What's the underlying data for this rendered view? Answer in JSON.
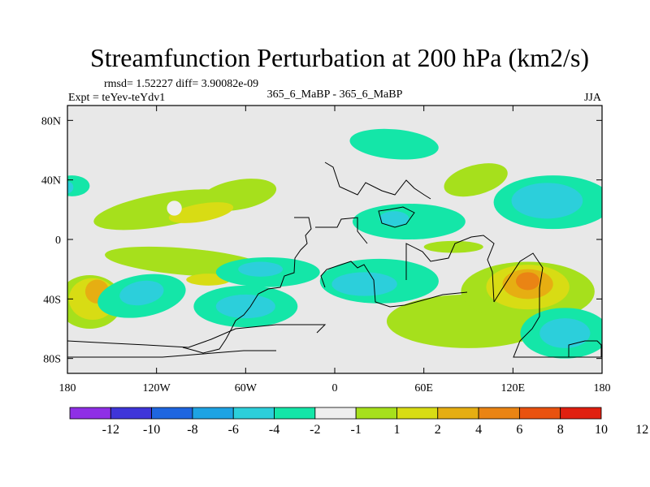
{
  "chart_data": {
    "type": "heatmap",
    "title": "Streamfunction Perturbation at 200 hPa (km2/s)",
    "stats_label": "rmsd= 1.52227 diff= 3.90082e-09",
    "experiment_label": "Expt = teYev-teYdv1",
    "comparison_label": "365_6_MaBP - 365_6_MaBP",
    "season_label": "JJA",
    "x_range": [
      -180,
      180
    ],
    "y_range": [
      -90,
      90
    ],
    "x_ticks": [
      {
        "value": -180,
        "label": "180"
      },
      {
        "value": -120,
        "label": "120W"
      },
      {
        "value": -60,
        "label": "60W"
      },
      {
        "value": 0,
        "label": "0"
      },
      {
        "value": 60,
        "label": "60E"
      },
      {
        "value": 120,
        "label": "120E"
      },
      {
        "value": 180,
        "label": "180"
      }
    ],
    "y_ticks": [
      {
        "value": 80,
        "label": "80N"
      },
      {
        "value": 40,
        "label": "40N"
      },
      {
        "value": 0,
        "label": "0"
      },
      {
        "value": -40,
        "label": "40S"
      },
      {
        "value": -80,
        "label": "80S"
      }
    ],
    "colorbar": {
      "colors": [
        "#8f2fe6",
        "#3f35d9",
        "#1f66e0",
        "#1ea3e3",
        "#2ccfdb",
        "#14e6a8",
        "#eeeeee",
        "#a6e01c",
        "#d8dc14",
        "#e6ae12",
        "#ea8414",
        "#e9520f",
        "#e02010"
      ],
      "labels": [
        "-12",
        "-10",
        "-8",
        "-6",
        "-4",
        "-2",
        "-1",
        "1",
        "2",
        "4",
        "6",
        "8",
        "10",
        "12"
      ]
    },
    "regions": [
      {
        "name": "npac-2",
        "level": "-2",
        "cx": -177,
        "cy": 36,
        "rx": 12,
        "ry": 7,
        "rot": 0
      },
      {
        "name": "pac-3",
        "level": "-4",
        "cx": -180,
        "cy": 35,
        "rx": 4,
        "ry": 4,
        "rot": 0
      },
      {
        "name": "npac-1",
        "level": "1",
        "cx": -115,
        "cy": 20,
        "rx": 48,
        "ry": 11,
        "rot": -10
      },
      {
        "name": "npac-1b",
        "level": "1",
        "cx": -65,
        "cy": 30,
        "rx": 26,
        "ry": 10,
        "rot": -10
      },
      {
        "name": "npac-2pos",
        "level": "2",
        "cx": -90,
        "cy": 18,
        "rx": 22,
        "ry": 6,
        "rot": -10
      },
      {
        "name": "npac-hole",
        "level": "-1",
        "cx": -108,
        "cy": 21,
        "rx": 5,
        "ry": 5,
        "rot": 0
      },
      {
        "name": "natl-1",
        "level": "-2",
        "cx": 40,
        "cy": 64,
        "rx": 30,
        "ry": 10,
        "rot": 5
      },
      {
        "name": "eurasia-1",
        "level": "-2",
        "cx": 50,
        "cy": 12,
        "rx": 38,
        "ry": 12,
        "rot": 0
      },
      {
        "name": "eurasia-2",
        "level": "-4",
        "cx": 40,
        "cy": 14,
        "rx": 10,
        "ry": 5,
        "rot": 0
      },
      {
        "name": "nasia-1",
        "level": "-2",
        "cx": 147,
        "cy": 25,
        "rx": 40,
        "ry": 18,
        "rot": 0
      },
      {
        "name": "nasia-2",
        "level": "-4",
        "cx": 143,
        "cy": 26,
        "rx": 24,
        "ry": 12,
        "rot": 0
      },
      {
        "name": "nasia-pos",
        "level": "1",
        "cx": 95,
        "cy": 40,
        "rx": 22,
        "ry": 10,
        "rot": -15
      },
      {
        "name": "trop-1",
        "level": "1",
        "cx": -100,
        "cy": -15,
        "rx": 55,
        "ry": 9,
        "rot": 5
      },
      {
        "name": "trop-2",
        "level": "2",
        "cx": -85,
        "cy": -27,
        "rx": 15,
        "ry": 4,
        "rot": 0
      },
      {
        "name": "trop-neg",
        "level": "-2",
        "cx": -45,
        "cy": -22,
        "rx": 35,
        "ry": 10,
        "rot": 0
      },
      {
        "name": "trop-neg4",
        "level": "-4",
        "cx": -50,
        "cy": -20,
        "rx": 15,
        "ry": 5,
        "rot": 0
      },
      {
        "name": "saf-neg",
        "level": "-2",
        "cx": 30,
        "cy": -28,
        "rx": 40,
        "ry": 15,
        "rot": 0
      },
      {
        "name": "saf-neg4",
        "level": "-4",
        "cx": 20,
        "cy": -30,
        "rx": 22,
        "ry": 8,
        "rot": 0
      },
      {
        "name": "spac-1",
        "level": "1",
        "cx": -165,
        "cy": -42,
        "rx": 22,
        "ry": 18,
        "rot": 0
      },
      {
        "name": "spac-2",
        "level": "2",
        "cx": -163,
        "cy": -40,
        "rx": 16,
        "ry": 14,
        "rot": 0
      },
      {
        "name": "spac-4",
        "level": "4",
        "cx": -160,
        "cy": -35,
        "rx": 8,
        "ry": 8,
        "rot": 0
      },
      {
        "name": "spac-neg",
        "level": "-2",
        "cx": -130,
        "cy": -38,
        "rx": 30,
        "ry": 14,
        "rot": -10
      },
      {
        "name": "spac-neg4",
        "level": "-4",
        "cx": -130,
        "cy": -36,
        "rx": 15,
        "ry": 8,
        "rot": -10
      },
      {
        "name": "satl-neg",
        "level": "-2",
        "cx": -60,
        "cy": -45,
        "rx": 35,
        "ry": 14,
        "rot": 0
      },
      {
        "name": "satl-neg4",
        "level": "-4",
        "cx": -60,
        "cy": -45,
        "rx": 20,
        "ry": 8,
        "rot": 0
      },
      {
        "name": "sind-1",
        "level": "1",
        "cx": 90,
        "cy": -55,
        "rx": 55,
        "ry": 18,
        "rot": 0
      },
      {
        "name": "aus-1",
        "level": "1",
        "cx": 130,
        "cy": -35,
        "rx": 45,
        "ry": 20,
        "rot": 0
      },
      {
        "name": "aus-2",
        "level": "2",
        "cx": 130,
        "cy": -32,
        "rx": 28,
        "ry": 15,
        "rot": 0
      },
      {
        "name": "aus-4",
        "level": "4",
        "cx": 130,
        "cy": -30,
        "rx": 17,
        "ry": 10,
        "rot": 0
      },
      {
        "name": "aus-6",
        "level": "6",
        "cx": 130,
        "cy": -28,
        "rx": 8,
        "ry": 6,
        "rot": 0
      },
      {
        "name": "so-neg",
        "level": "-2",
        "cx": 155,
        "cy": -63,
        "rx": 30,
        "ry": 17,
        "rot": 0
      },
      {
        "name": "so-neg4",
        "level": "-4",
        "cx": 155,
        "cy": -63,
        "rx": 17,
        "ry": 10,
        "rot": 0
      },
      {
        "name": "ind-pos",
        "level": "1",
        "cx": 80,
        "cy": -5,
        "rx": 20,
        "ry": 4,
        "rot": 0
      }
    ]
  }
}
